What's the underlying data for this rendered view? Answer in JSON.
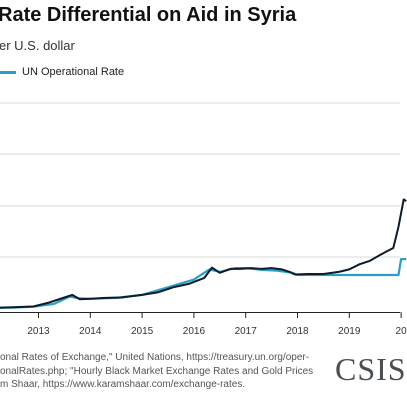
{
  "title": "Rate Differential on Aid in Syria",
  "subtitle": "er U.S. dollar",
  "legend": {
    "items": [
      {
        "label": "UN Operational Rate",
        "color": "#2a9fc4"
      }
    ]
  },
  "source": {
    "lines": [
      "onal Rates of Exchange,\" United Nations, https://treasury.un.org/oper-",
      "onalRates.php; \"Hourly Black Market Exchange Rates and Gold Prices",
      "m Shaar, https://www.karamshaar.com/exchange-rates."
    ]
  },
  "logo": {
    "text": "CSIS"
  },
  "chart_data": {
    "type": "line",
    "title": "Rate Differential on Aid in Syria",
    "ylabel": "er U.S. dollar",
    "x_ticks": [
      "2013",
      "2014",
      "2015",
      "2016",
      "2017",
      "2018",
      "2019",
      "20"
    ],
    "grid": true,
    "legend_position": "top-left",
    "series": [
      {
        "name": "UN Operational Rate",
        "color": "#2a9fc4",
        "x": [
          2012.0,
          2012.5,
          2012.9,
          2013.3,
          2013.6,
          2013.8,
          2014.0,
          2014.5,
          2015.0,
          2015.5,
          2016.0,
          2016.3,
          2016.5,
          2016.8,
          2017.0,
          2017.3,
          2017.6,
          2017.9,
          2018.0,
          2018.5,
          2019.0,
          2019.5,
          2019.95,
          2020.0,
          2020.1
        ],
        "y": [
          47,
          52,
          62,
          95,
          180,
          160,
          155,
          165,
          200,
          290,
          380,
          500,
          470,
          515,
          515,
          495,
          485,
          460,
          435,
          434,
          434,
          434,
          434,
          620,
          620
        ]
      },
      {
        "name": "",
        "color": "#0d1b2a",
        "x": [
          2012.0,
          2012.5,
          2012.9,
          2013.2,
          2013.5,
          2013.65,
          2013.8,
          2014.0,
          2014.3,
          2014.6,
          2015.0,
          2015.3,
          2015.6,
          2015.9,
          2016.2,
          2016.35,
          2016.5,
          2016.7,
          2016.9,
          2017.1,
          2017.3,
          2017.5,
          2017.7,
          2017.85,
          2017.95,
          2018.2,
          2018.5,
          2018.8,
          2019.0,
          2019.2,
          2019.4,
          2019.6,
          2019.75,
          2019.85,
          2019.95,
          2020.05,
          2020.1
        ],
        "y": [
          48,
          55,
          65,
          110,
          170,
          200,
          150,
          155,
          165,
          170,
          200,
          230,
          290,
          330,
          400,
          520,
          460,
          505,
          505,
          515,
          505,
          515,
          500,
          470,
          440,
          445,
          445,
          470,
          500,
          560,
          600,
          670,
          720,
          750,
          1000,
          1320,
          1300
        ]
      }
    ]
  }
}
